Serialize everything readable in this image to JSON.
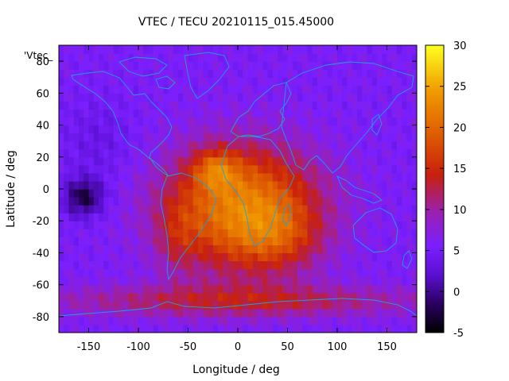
{
  "title": "VTEC / TECU 20210115_015.45000",
  "chart_data": {
    "type": "heatmap",
    "title": "VTEC / TECU 20210115_015.45000",
    "xlabel": "Longitude / deg",
    "ylabel": "Latitude / deg",
    "key_label": "'Vtec_",
    "xlim": [
      -180,
      180
    ],
    "ylim": [
      -90,
      90
    ],
    "xticks": [
      -150,
      -100,
      -50,
      0,
      50,
      100,
      150
    ],
    "yticks": [
      -80,
      -60,
      -40,
      -20,
      0,
      20,
      40,
      60,
      80
    ],
    "colorbar": {
      "range": [
        -5,
        30
      ],
      "ticks": [
        -5,
        0,
        5,
        10,
        15,
        20,
        25,
        30
      ],
      "unit": "TECU"
    },
    "colors": {
      "low": "#000000",
      "mid_purple": "#7a1fff",
      "red": "#c8200c",
      "orange": "#ee8a00",
      "high": "#ffff20",
      "coastline": "#1fa0e0"
    }
  }
}
